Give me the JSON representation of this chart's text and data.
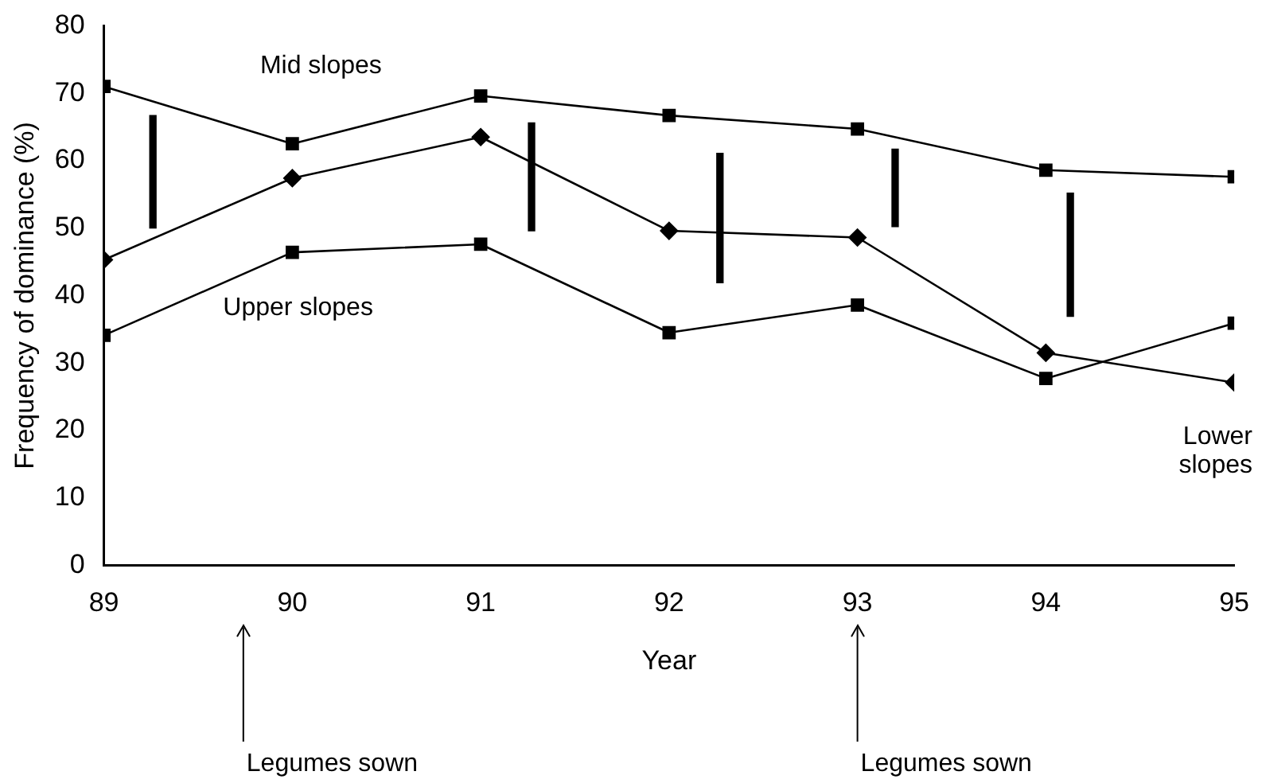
{
  "chart_data": {
    "type": "line",
    "xlabel": "Year",
    "ylabel": "Frequency of dominance (%)",
    "x": [
      89,
      90,
      91,
      92,
      93,
      94,
      95
    ],
    "xlim": [
      89,
      95
    ],
    "xticks": [
      89,
      90,
      91,
      92,
      93,
      94,
      95
    ],
    "ylim": [
      0,
      80
    ],
    "yticks": [
      0,
      10,
      20,
      30,
      40,
      50,
      60,
      70,
      80
    ],
    "grid": false,
    "legend": false,
    "line_style": "solid",
    "series": [
      {
        "name": "Mid slopes",
        "color": "#000000",
        "marker": "square",
        "values": [
          71,
          62.5,
          69.6,
          66.7,
          64.7,
          58.6,
          57.6
        ]
      },
      {
        "name": "Lower slopes",
        "color": "#000000",
        "marker": "diamond",
        "values": [
          45.3,
          57.4,
          63.5,
          49.6,
          48.6,
          31.5,
          27.1
        ]
      },
      {
        "name": "Upper slopes",
        "color": "#000000",
        "marker": "square",
        "values": [
          34.1,
          46.4,
          47.6,
          34.5,
          38.6,
          27.7,
          35.9
        ]
      },
      {
        "type": "bar",
        "color": "#000000",
        "x": [
          89.26,
          91.27,
          92.27,
          93.2,
          94.13
        ],
        "base": [
          50,
          49.6,
          41.9,
          50.2,
          36.9
        ],
        "values": [
          16.7,
          16,
          19.2,
          11.5,
          18.3
        ]
      }
    ],
    "ref_lines": [
      {
        "axis": "x",
        "value": 89.74,
        "label": "Legumes sown"
      },
      {
        "axis": "x",
        "value": 93,
        "label": "Legumes sown"
      }
    ]
  }
}
